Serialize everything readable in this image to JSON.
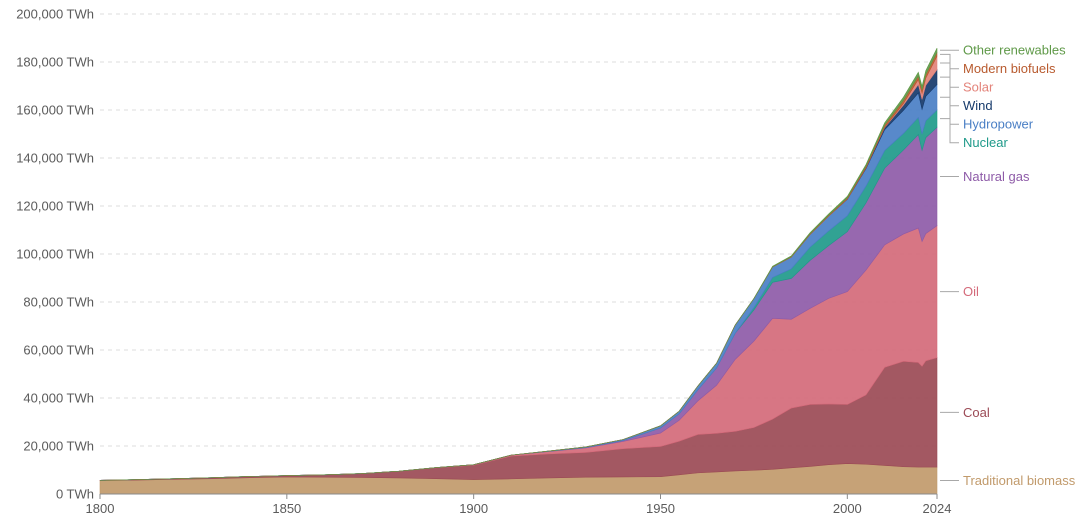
{
  "chart_data": {
    "type": "area",
    "stacked": true,
    "x": [
      1800,
      1810,
      1820,
      1830,
      1840,
      1850,
      1860,
      1870,
      1880,
      1890,
      1900,
      1910,
      1920,
      1930,
      1940,
      1950,
      1955,
      1960,
      1965,
      1970,
      1975,
      1980,
      1985,
      1990,
      1995,
      2000,
      2005,
      2010,
      2015,
      2019,
      2020,
      2021,
      2024
    ],
    "series": [
      {
        "name": "Traditional biomass",
        "color": "#c19a6b",
        "values": [
          5600,
          5800,
          6100,
          6400,
          6800,
          7100,
          7000,
          6900,
          6700,
          6400,
          6000,
          6300,
          6700,
          7000,
          7100,
          7200,
          8000,
          8800,
          9200,
          9600,
          9900,
          10300,
          10900,
          11500,
          12200,
          12700,
          12400,
          11900,
          11400,
          11200,
          11200,
          11200,
          11200
        ]
      },
      {
        "name": "Coal",
        "color": "#9b4a55",
        "values": [
          100,
          200,
          300,
          400,
          500,
          600,
          1000,
          1600,
          2800,
          4500,
          6000,
          9500,
          10000,
          10300,
          11800,
          12600,
          14000,
          16000,
          16100,
          16500,
          17800,
          20900,
          24900,
          25800,
          25300,
          24600,
          28900,
          40900,
          43900,
          43600,
          42000,
          44300,
          45600
        ]
      },
      {
        "name": "Oil",
        "color": "#d46a7a",
        "values": [
          0,
          0,
          0,
          0,
          0,
          0,
          0,
          0,
          0,
          100,
          200,
          400,
          1000,
          1900,
          3000,
          5600,
          8700,
          14000,
          20000,
          30000,
          36000,
          42000,
          37000,
          40000,
          44000,
          47000,
          52000,
          51000,
          53000,
          56000,
          52000,
          53000,
          55000
        ]
      },
      {
        "name": "Natural gas",
        "color": "#8e5ba8",
        "values": [
          0,
          0,
          0,
          0,
          0,
          0,
          0,
          0,
          0,
          0,
          0,
          0,
          100,
          200,
          400,
          2100,
          2700,
          4600,
          7200,
          10900,
          13000,
          15000,
          17000,
          20000,
          22000,
          25000,
          28000,
          32000,
          35000,
          39000,
          38000,
          40000,
          41000
        ]
      },
      {
        "name": "Nuclear",
        "color": "#1f9a8a",
        "values": [
          0,
          0,
          0,
          0,
          0,
          0,
          0,
          0,
          0,
          0,
          0,
          0,
          0,
          0,
          0,
          0,
          0,
          0,
          0,
          0,
          1000,
          2000,
          4000,
          5500,
          6100,
          6600,
          7000,
          7300,
          6900,
          7100,
          6800,
          7000,
          7200
        ]
      },
      {
        "name": "Hydropower",
        "color": "#4a7fc5",
        "values": [
          0,
          0,
          0,
          0,
          0,
          0,
          0,
          0,
          0,
          0,
          0,
          0,
          100,
          200,
          400,
          900,
          1100,
          1600,
          2000,
          3400,
          3700,
          4400,
          4900,
          5300,
          6200,
          6900,
          7300,
          8700,
          9600,
          10200,
          10300,
          10200,
          10600
        ]
      },
      {
        "name": "Wind",
        "color": "#163a6b",
        "values": [
          0,
          0,
          0,
          0,
          0,
          0,
          0,
          0,
          0,
          0,
          0,
          0,
          0,
          0,
          0,
          0,
          0,
          0,
          0,
          0,
          0,
          0,
          0,
          0,
          0,
          100,
          300,
          900,
          2200,
          3500,
          4100,
          4600,
          6200
        ]
      },
      {
        "name": "Solar",
        "color": "#e3837a",
        "values": [
          0,
          0,
          0,
          0,
          0,
          0,
          0,
          0,
          0,
          0,
          0,
          0,
          0,
          0,
          0,
          0,
          0,
          0,
          0,
          0,
          0,
          0,
          0,
          0,
          0,
          0,
          0,
          100,
          700,
          2100,
          2600,
          3000,
          5600
        ]
      },
      {
        "name": "Modern biofuels",
        "color": "#b85a2e",
        "values": [
          0,
          0,
          0,
          0,
          0,
          0,
          0,
          0,
          0,
          0,
          0,
          0,
          0,
          0,
          0,
          0,
          0,
          0,
          0,
          0,
          0,
          100,
          200,
          300,
          400,
          500,
          700,
          1000,
          1300,
          1500,
          1400,
          1500,
          1600
        ]
      },
      {
        "name": "Other renewables",
        "color": "#5f9948",
        "values": [
          0,
          0,
          0,
          0,
          0,
          0,
          0,
          0,
          0,
          0,
          0,
          0,
          0,
          0,
          0,
          0,
          0,
          0,
          0,
          0,
          100,
          200,
          300,
          400,
          500,
          600,
          700,
          900,
          1300,
          1500,
          1500,
          1600,
          1800
        ]
      }
    ],
    "xlim": [
      1800,
      2024
    ],
    "ylim": [
      0,
      200000
    ],
    "y_ticks": [
      0,
      20000,
      40000,
      60000,
      80000,
      100000,
      120000,
      140000,
      160000,
      180000,
      200000
    ],
    "y_tick_labels": [
      "0 TWh",
      "20,000 TWh",
      "40,000 TWh",
      "60,000 TWh",
      "80,000 TWh",
      "100,000 TWh",
      "120,000 TWh",
      "140,000 TWh",
      "160,000 TWh",
      "180,000 TWh",
      "200,000 TWh"
    ],
    "x_ticks": [
      1800,
      1850,
      1900,
      1950,
      2000,
      2024
    ],
    "x_tick_labels": [
      "1800",
      "1850",
      "1900",
      "1950",
      "2000",
      "2024"
    ],
    "grid": "horizontal dashed",
    "legend": "right, inline labels"
  }
}
